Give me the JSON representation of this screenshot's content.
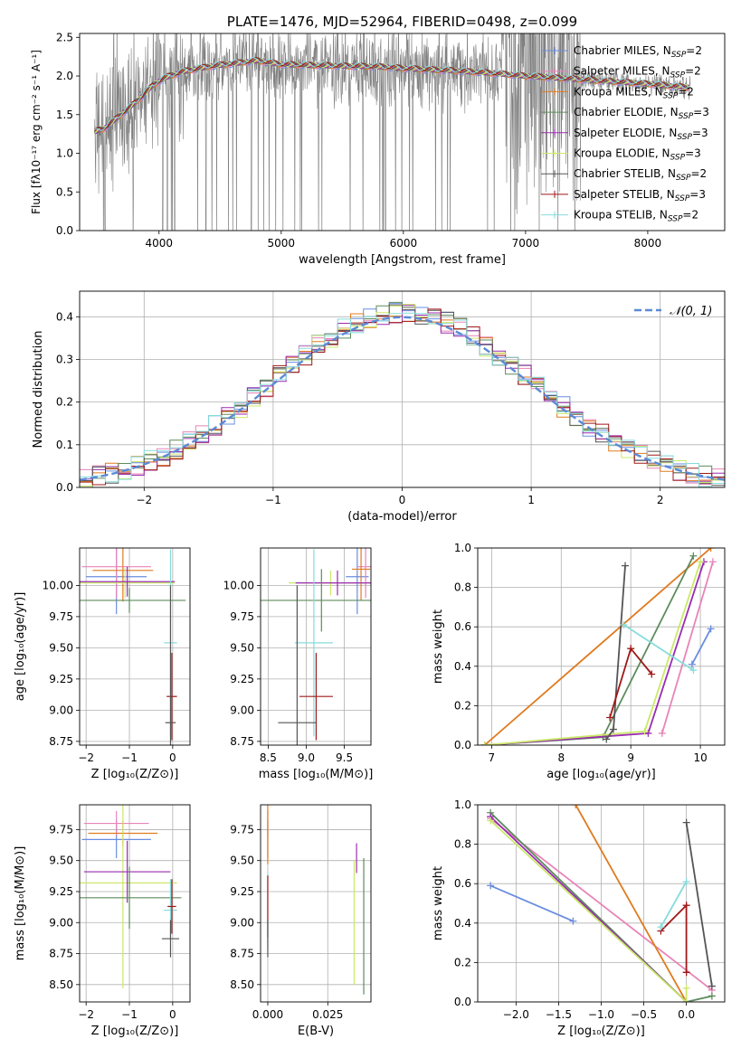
{
  "chart_data": [
    {
      "id": "spectrum",
      "type": "line",
      "title": "PLATE=1476, MJD=52964, FIBERID=0498, z=0.099",
      "xlabel": "wavelength [Angstrom, rest frame]",
      "ylabel": "Flux [fλ10⁻¹⁷ erg cm⁻² s⁻¹ A⁻¹]",
      "xlim": [
        3350,
        8630
      ],
      "ylim": [
        0,
        2.55
      ],
      "xticks": [
        4000,
        5000,
        6000,
        7000,
        8000
      ],
      "yticks": [
        0.0,
        0.5,
        1.0,
        1.5,
        2.0,
        2.5
      ],
      "grid": false,
      "legend_position": "right",
      "data_color": "#808080",
      "continuum": {
        "x": [
          3470,
          3550,
          3650,
          3750,
          3850,
          3950,
          4050,
          4200,
          4400,
          4600,
          4800,
          5000,
          5200,
          5500,
          5800,
          6100,
          6400,
          6700,
          7000,
          7300,
          7600,
          7900,
          8200,
          8350
        ],
        "y": [
          1.28,
          1.32,
          1.45,
          1.58,
          1.72,
          1.88,
          1.98,
          2.06,
          2.12,
          2.16,
          2.2,
          2.15,
          2.14,
          2.13,
          2.12,
          2.09,
          2.07,
          2.04,
          2.0,
          1.97,
          1.94,
          1.91,
          1.87,
          1.85
        ]
      },
      "legend": [
        {
          "label": "Chabrier MILES, N",
          "sub": "SSP",
          "suffix": "=2",
          "color": "#6a8de0"
        },
        {
          "label": "Salpeter MILES, N",
          "sub": "SSP",
          "suffix": "=2",
          "color": "#e884b8"
        },
        {
          "label": "Kroupa MILES, N",
          "sub": "SSP",
          "suffix": "=2",
          "color": "#e07b20"
        },
        {
          "label": "Chabrier ELODIE, N",
          "sub": "SSP",
          "suffix": "=3",
          "color": "#5e8c5e"
        },
        {
          "label": "Salpeter ELODIE, N",
          "sub": "SSP",
          "suffix": "=3",
          "color": "#9a2bb0"
        },
        {
          "label": "Kroupa ELODIE, N",
          "sub": "SSP",
          "suffix": "=3",
          "color": "#cbe86a"
        },
        {
          "label": "Chabrier STELIB, N",
          "sub": "SSP",
          "suffix": "=2",
          "color": "#555555"
        },
        {
          "label": "Salpeter STELIB, N",
          "sub": "SSP",
          "suffix": "=3",
          "color": "#a01818"
        },
        {
          "label": "Kroupa STELIB, N",
          "sub": "SSP",
          "suffix": "=2",
          "color": "#86dcdc"
        }
      ]
    },
    {
      "id": "residuals",
      "type": "line",
      "xlabel": "(data-model)/error",
      "ylabel": "Normed distribution",
      "xlim": [
        -2.5,
        2.5
      ],
      "ylim": [
        0,
        0.46
      ],
      "xticks": [
        -2,
        -1,
        0,
        1,
        2
      ],
      "yticks": [
        0.0,
        0.1,
        0.2,
        0.3,
        0.4
      ],
      "grid": true,
      "legend_position": "top-right",
      "legend_label": "𝒩(0, 1)",
      "gaussian_color": "#5b8ad6",
      "histogram_bins": {
        "start": -2.5,
        "width": 0.1,
        "count": 50
      },
      "series_colors": [
        "#6a8de0",
        "#e884b8",
        "#e07b20",
        "#5e8c5e",
        "#9a2bb0",
        "#cbe86a",
        "#555555",
        "#a01818",
        "#86dcdc"
      ]
    },
    {
      "id": "age-vs-Z",
      "type": "scatter",
      "xlabel": "Z [log₁₀(Z/Z⊙)]",
      "ylabel": "age  [log₁₀(age/yr)]",
      "xlim": [
        -2.15,
        0.4
      ],
      "ylim": [
        8.72,
        10.3
      ],
      "xticks": [
        -2,
        -1,
        0
      ],
      "yticks": [
        8.75,
        9.0,
        9.25,
        9.5,
        9.75,
        10.0
      ],
      "grid": true,
      "points": [
        {
          "x": -1.3,
          "y": 10.07,
          "xerr": 0.7,
          "yerr": 0.3,
          "color": "#6a8de0"
        },
        {
          "x": -1.3,
          "y": 10.15,
          "xerr": 0.8,
          "yerr": 0.25,
          "color": "#e884b8"
        },
        {
          "x": -1.15,
          "y": 10.12,
          "xerr": 0.7,
          "yerr": 0.25,
          "color": "#e07b20"
        },
        {
          "x": -1.1,
          "y": 10.02,
          "xerr": 1.15,
          "yerr": 0.12,
          "color": "#cbe86a"
        },
        {
          "x": -1.05,
          "y": 10.03,
          "xerr": 1.1,
          "yerr": 0.12,
          "color": "#9a2bb0"
        },
        {
          "x": -1.0,
          "y": 9.88,
          "xerr": 1.3,
          "yerr": 0.1,
          "color": "#5e8c5e"
        },
        {
          "x": -0.05,
          "y": 9.54,
          "xerr": 0.15,
          "yerr": 0.75,
          "color": "#86dcdc"
        },
        {
          "x": -0.02,
          "y": 9.11,
          "xerr": 0.12,
          "yerr": 0.35,
          "color": "#a01818"
        },
        {
          "x": -0.05,
          "y": 8.9,
          "xerr": 0.12,
          "yerr": 1.1,
          "color": "#555555"
        }
      ]
    },
    {
      "id": "age-vs-mass",
      "type": "scatter",
      "xlabel": "mass [log₁₀(M/M⊙)]",
      "xlim": [
        8.4,
        9.85
      ],
      "ylim": [
        8.72,
        10.3
      ],
      "xticks": [
        8.5,
        9.0,
        9.5
      ],
      "yticks": [
        8.75,
        9.0,
        9.25,
        9.5,
        9.75,
        10.0
      ],
      "grid": true,
      "points": [
        {
          "x": 9.67,
          "y": 10.07,
          "xerr": 0.15,
          "yerr": 0.3,
          "color": "#6a8de0"
        },
        {
          "x": 9.78,
          "y": 10.15,
          "xerr": 0.1,
          "yerr": 0.25,
          "color": "#e884b8"
        },
        {
          "x": 9.72,
          "y": 10.13,
          "xerr": 0.12,
          "yerr": 0.25,
          "color": "#e07b20"
        },
        {
          "x": 9.32,
          "y": 10.02,
          "xerr": 0.55,
          "yerr": 0.1,
          "color": "#cbe86a"
        },
        {
          "x": 9.41,
          "y": 10.02,
          "xerr": 0.55,
          "yerr": 0.1,
          "color": "#9a2bb0"
        },
        {
          "x": 9.2,
          "y": 9.88,
          "xerr": 0.9,
          "yerr": 0.25,
          "color": "#5e8c5e"
        },
        {
          "x": 9.1,
          "y": 9.54,
          "xerr": 0.25,
          "yerr": 0.75,
          "color": "#86dcdc"
        },
        {
          "x": 9.13,
          "y": 9.11,
          "xerr": 0.22,
          "yerr": 0.35,
          "color": "#a01818"
        },
        {
          "x": 8.88,
          "y": 8.9,
          "xerr": 0.25,
          "yerr": 1.1,
          "color": "#555555"
        }
      ]
    },
    {
      "id": "weight-vs-age",
      "type": "line",
      "xlabel": "age  [log₁₀(age/yr)]",
      "ylabel": "mass weight",
      "xlim": [
        6.8,
        10.35
      ],
      "ylim": [
        0,
        1.0
      ],
      "xticks": [
        7,
        8,
        9,
        10
      ],
      "yticks": [
        0.0,
        0.2,
        0.4,
        0.6,
        0.8,
        1.0
      ],
      "grid": true,
      "series": [
        {
          "color": "#6a8de0",
          "x": [
            9.88,
            10.15
          ],
          "y": [
            0.41,
            0.59
          ]
        },
        {
          "color": "#e884b8",
          "x": [
            9.45,
            10.18
          ],
          "y": [
            0.06,
            0.93
          ]
        },
        {
          "color": "#e07b20",
          "x": [
            6.9,
            10.15
          ],
          "y": [
            0.0,
            1.0
          ]
        },
        {
          "color": "#5e8c5e",
          "x": [
            6.9,
            8.6,
            9.9
          ],
          "y": [
            0.0,
            0.04,
            0.96
          ]
        },
        {
          "color": "#9a2bb0",
          "x": [
            6.9,
            9.25,
            10.05
          ],
          "y": [
            0.0,
            0.06,
            0.93
          ]
        },
        {
          "color": "#cbe86a",
          "x": [
            6.9,
            9.2,
            10.0
          ],
          "y": [
            0.0,
            0.07,
            0.93
          ]
        },
        {
          "color": "#555555",
          "x": [
            8.65,
            8.75,
            8.92
          ],
          "y": [
            0.03,
            0.08,
            0.91
          ]
        },
        {
          "color": "#a01818",
          "x": [
            8.7,
            9.0,
            9.3
          ],
          "y": [
            0.14,
            0.49,
            0.36
          ]
        },
        {
          "color": "#86dcdc",
          "x": [
            8.9,
            9.9
          ],
          "y": [
            0.61,
            0.38
          ]
        }
      ]
    },
    {
      "id": "mass-vs-Z",
      "type": "scatter",
      "xlabel": "Z [log₁₀(Z/Z⊙)]",
      "ylabel": "mass [log₁₀(M/M⊙)]",
      "xlim": [
        -2.15,
        0.4
      ],
      "ylim": [
        8.36,
        9.95
      ],
      "xticks": [
        -2,
        -1,
        0
      ],
      "yticks": [
        8.5,
        8.75,
        9.0,
        9.25,
        9.5,
        9.75
      ],
      "grid": true,
      "points": [
        {
          "x": -1.3,
          "y": 9.67,
          "xerr": 0.8,
          "yerr": 0.15,
          "color": "#6a8de0"
        },
        {
          "x": -1.3,
          "y": 9.8,
          "xerr": 0.75,
          "yerr": 0.1,
          "color": "#e884b8"
        },
        {
          "x": -1.15,
          "y": 9.72,
          "xerr": 0.8,
          "yerr": 0.1,
          "color": "#e07b20"
        },
        {
          "x": -1.15,
          "y": 9.32,
          "xerr": 1.25,
          "yerr": 0.85,
          "color": "#cbe86a"
        },
        {
          "x": -1.05,
          "y": 9.41,
          "xerr": 1.0,
          "yerr": 0.25,
          "color": "#9a2bb0"
        },
        {
          "x": -1.0,
          "y": 9.2,
          "xerr": 1.2,
          "yerr": 0.25,
          "color": "#5e8c5e"
        },
        {
          "x": -0.05,
          "y": 9.1,
          "xerr": 0.15,
          "yerr": 0.25,
          "color": "#86dcdc"
        },
        {
          "x": -0.02,
          "y": 9.13,
          "xerr": 0.1,
          "yerr": 0.22,
          "color": "#a01818"
        },
        {
          "x": -0.05,
          "y": 8.87,
          "xerr": 0.2,
          "yerr": 0.15,
          "color": "#555555"
        }
      ]
    },
    {
      "id": "mass-vs-EBV",
      "type": "scatter",
      "xlabel": "E(B-V)",
      "xlim": [
        -0.003,
        0.043
      ],
      "ylim": [
        8.36,
        9.95
      ],
      "xticks": [
        0.0,
        0.025
      ],
      "xtick_labels": [
        "0.000",
        "0.025"
      ],
      "yticks": [
        8.5,
        8.75,
        9.0,
        9.25,
        9.5,
        9.75
      ],
      "grid": true,
      "points": [
        {
          "x": 0.0,
          "y": 9.67,
          "yerr": 0.15,
          "color": "#6a8de0"
        },
        {
          "x": 0.0,
          "y": 9.8,
          "yerr": 0.1,
          "color": "#e884b8"
        },
        {
          "x": 0.0,
          "y": 9.72,
          "yerr": 0.25,
          "color": "#e07b20"
        },
        {
          "x": 0.036,
          "y": 9.0,
          "yerr": 0.5,
          "color": "#cbe86a"
        },
        {
          "x": 0.037,
          "y": 9.52,
          "yerr": 0.12,
          "color": "#9a2bb0"
        },
        {
          "x": 0.04,
          "y": 8.97,
          "yerr": 0.55,
          "color": "#5e8c5e"
        },
        {
          "x": 0.0,
          "y": 9.1,
          "yerr": 0.3,
          "color": "#86dcdc"
        },
        {
          "x": 0.0,
          "y": 9.13,
          "yerr": 0.25,
          "color": "#a01818"
        },
        {
          "x": 0.0,
          "y": 8.87,
          "yerr": 0.15,
          "color": "#555555"
        }
      ]
    },
    {
      "id": "weight-vs-Z",
      "type": "line",
      "xlabel": "Z [log₁₀(Z/Z⊙)]",
      "ylabel": "mass weight",
      "xlim": [
        -2.45,
        0.45
      ],
      "ylim": [
        0,
        1.0
      ],
      "xticks": [
        -2.0,
        -1.5,
        -1.0,
        -0.5,
        0.0
      ],
      "xtick_labels": [
        "−2.0",
        "−1.5",
        "−1.0",
        "−0.5",
        "0.0"
      ],
      "yticks": [
        0.0,
        0.2,
        0.4,
        0.6,
        0.8,
        1.0
      ],
      "grid": true,
      "series": [
        {
          "color": "#6a8de0",
          "x": [
            -2.3,
            -1.33
          ],
          "y": [
            0.59,
            0.41
          ]
        },
        {
          "color": "#e884b8",
          "x": [
            -2.3,
            0.3
          ],
          "y": [
            0.93,
            0.06
          ]
        },
        {
          "color": "#e07b20",
          "x": [
            -1.3,
            0.0
          ],
          "y": [
            1.0,
            0.0
          ]
        },
        {
          "color": "#5e8c5e",
          "x": [
            -2.3,
            0.0,
            0.3
          ],
          "y": [
            0.96,
            0.0,
            0.03
          ]
        },
        {
          "color": "#9a2bb0",
          "x": [
            -2.3,
            0.0
          ],
          "y": [
            0.94,
            0.0
          ]
        },
        {
          "color": "#cbe86a",
          "x": [
            -2.3,
            0.0,
            0.0
          ],
          "y": [
            0.92,
            0.0,
            0.07
          ]
        },
        {
          "color": "#555555",
          "x": [
            0.0,
            0.3
          ],
          "y": [
            0.91,
            0.08
          ]
        },
        {
          "color": "#a01818",
          "x": [
            -0.3,
            0.0,
            0.0
          ],
          "y": [
            0.36,
            0.49,
            0.15
          ]
        },
        {
          "color": "#86dcdc",
          "x": [
            -0.3,
            0.0
          ],
          "y": [
            0.38,
            0.61
          ]
        }
      ]
    }
  ]
}
